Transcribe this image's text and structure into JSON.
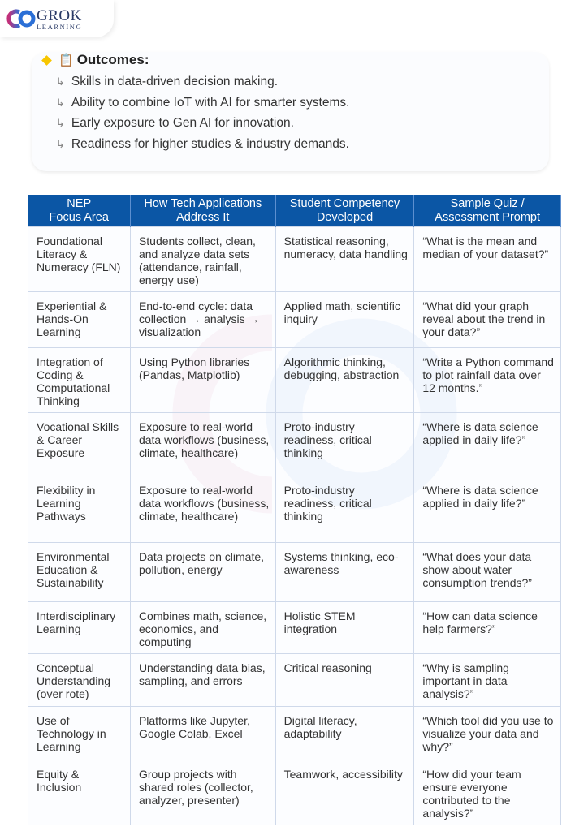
{
  "logo": {
    "name": "GROK",
    "subtitle": "LEARNING"
  },
  "outcomes": {
    "title": "Outcomes:",
    "items": [
      "Skills in data-driven decision making.",
      "Ability to combine IoT with AI for smarter systems.",
      "Early exposure to Gen AI for innovation.",
      "Readiness for higher studies & industry demands."
    ]
  },
  "table": {
    "headers": [
      "NEP\nFocus Area",
      "How Tech Applications Address It",
      "Student Competency Developed",
      "Sample Quiz / Assessment Prompt"
    ],
    "rows": [
      [
        "Foundational Literacy & Numeracy (FLN)",
        "Students collect, clean, and analyze data sets (attendance, rainfall, energy use)",
        "Statistical reasoning, numeracy, data handling",
        "“What is the mean and median of your dataset?”"
      ],
      [
        "Experiential & Hands-On Learning",
        "End-to-end cycle: data collection → analysis → visualization",
        "Applied math, scientific inquiry",
        "“What did your graph reveal about the trend in your data?”"
      ],
      [
        "Integration of Coding & Computational Thinking",
        "Using Python libraries (Pandas, Matplotlib)",
        "Algorithmic thinking, debugging, abstraction",
        "“Write a Python command to plot rainfall data over 12 months.”"
      ],
      [
        "Vocational Skills & Career Exposure",
        "Exposure to real-world data workflows (business, climate, healthcare)",
        "Proto-industry readiness, critical thinking",
        "“Where is data science applied in daily life?”"
      ],
      [
        "Flexibility in Learning Pathways",
        "Exposure to real-world data workflows (business, climate, healthcare)",
        "Proto-industry readiness, critical thinking",
        "“Where is data science applied in daily life?”"
      ],
      [
        "Environmental Education & Sustainability",
        "Data projects on climate, pollution, energy",
        "Systems thinking, eco-awareness",
        "“What does your data show about water consumption trends?”"
      ],
      [
        "Interdisciplinary Learning",
        "Combines math, science, economics, and computing",
        "Holistic STEM integration",
        "“How can data science help farmers?”"
      ],
      [
        "Conceptual Understanding (over rote)",
        "Understanding data bias, sampling, and errors",
        "Critical reasoning",
        "“Why is sampling important in data analysis?”"
      ],
      [
        "Use of Technology in Learning",
        "Platforms like Jupyter, Google Colab, Excel",
        "Digital literacy, adaptability",
        "“Which tool did you use to visualize your data and why?”"
      ],
      [
        "Equity & Inclusion",
        "Group projects with shared roles (collector, analyzer, presenter)",
        "Teamwork, accessibility",
        "“How did your team ensure everyone contributed to the analysis?”"
      ]
    ]
  },
  "colors": {
    "header_bg": "#0b56a5",
    "accent_diamond": "#f7c600",
    "border": "#cfd9ea"
  }
}
